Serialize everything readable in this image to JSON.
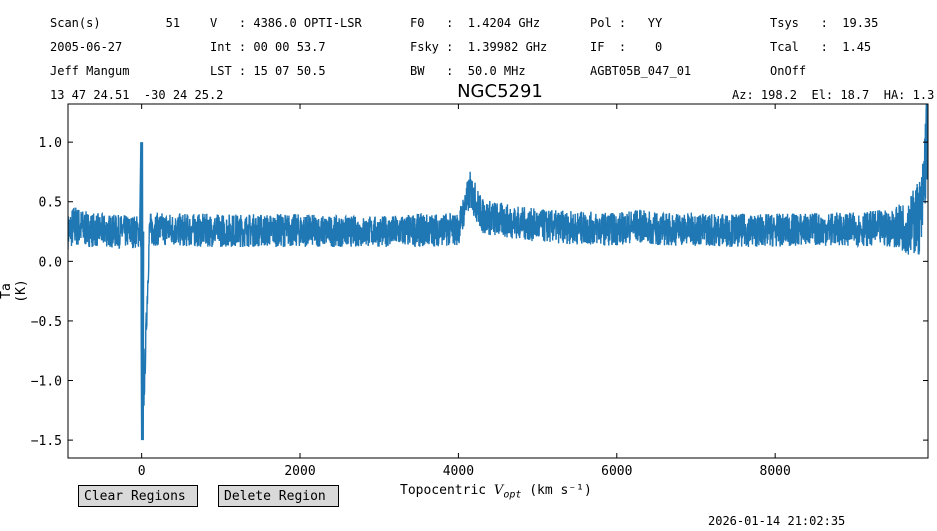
{
  "header": {
    "rows": [
      [
        "Scan(s)         51",
        "V   : 4386.0 OPTI-LSR",
        "F0   :  1.4204 GHz",
        "Pol :   YY",
        "Tsys   :  19.35"
      ],
      [
        "2005-06-27",
        "Int : 00 00 53.7",
        "Fsky :  1.39982 GHz",
        "IF  :    0",
        "Tcal   :  1.45"
      ],
      [
        "Jeff Mangum",
        "LST : 15 07 50.5",
        "BW   :  50.0 MHz",
        "AGBT05B_047_01",
        "OnOff"
      ]
    ],
    "coords": "13 47 24.51  -30 24 25.2",
    "azel": "Az: 198.2  El: 18.7  HA: 1.3"
  },
  "title": "NGC5291",
  "axes": {
    "ylabel": "Ta (K)",
    "xlabel_prefix": "Topocentric ",
    "xlabel_var": "V",
    "xlabel_sub": "opt",
    "xlabel_unit": " (km s⁻¹)"
  },
  "buttons": {
    "clear": "Clear Regions",
    "delete": "Delete Region"
  },
  "timestamp": "2026-01-14 21:02:35",
  "colors": {
    "line": "#1f77b4"
  },
  "chart_data": {
    "type": "line",
    "title": "NGC5291",
    "xlabel": "Topocentric V_opt (km s^-1)",
    "ylabel": "Ta (K)",
    "xlim": [
      -930,
      9930
    ],
    "ylim": [
      -1.65,
      1.32
    ],
    "xticks": [
      0,
      2000,
      4000,
      6000,
      8000
    ],
    "xtick_labels": [
      "0",
      "2000",
      "4000",
      "6000",
      "8000"
    ],
    "yticks": [
      1.0,
      0.5,
      0.0,
      -0.5,
      -1.0,
      -1.5
    ],
    "ytick_labels": [
      "1.0",
      "0.5",
      "0.0",
      "−0.5",
      "−1.0",
      "−1.5"
    ],
    "series": [
      {
        "x": [
          -930,
          -850,
          -700,
          -500,
          -300,
          -100,
          -10,
          0,
          10,
          100,
          300,
          600,
          1000,
          1500,
          2000,
          2500,
          3000,
          3500,
          4000,
          4100,
          4150,
          4300,
          4500,
          4700,
          5000,
          5500,
          6000,
          6250,
          6500,
          7000,
          7500,
          8000,
          8500,
          9000,
          9500,
          9700,
          9850,
          9930
        ],
        "y": [
          0.25,
          0.3,
          0.27,
          0.26,
          0.25,
          0.25,
          0.25,
          1.0,
          -1.5,
          0.27,
          0.27,
          0.26,
          0.26,
          0.26,
          0.26,
          0.25,
          0.25,
          0.26,
          0.27,
          0.5,
          0.6,
          0.38,
          0.35,
          0.33,
          0.3,
          0.28,
          0.27,
          0.3,
          0.27,
          0.27,
          0.26,
          0.26,
          0.27,
          0.27,
          0.28,
          0.3,
          0.4,
          1.2
        ],
        "noise_amplitude": [
          0.15,
          0.18,
          0.15,
          0.14,
          0.14,
          0.14,
          0.14,
          0.15,
          0.15,
          0.14,
          0.14,
          0.14,
          0.14,
          0.14,
          0.14,
          0.13,
          0.13,
          0.14,
          0.14,
          0.15,
          0.16,
          0.15,
          0.15,
          0.14,
          0.14,
          0.14,
          0.14,
          0.14,
          0.14,
          0.14,
          0.14,
          0.14,
          0.14,
          0.14,
          0.16,
          0.25,
          0.35,
          0.45
        ]
      }
    ]
  }
}
